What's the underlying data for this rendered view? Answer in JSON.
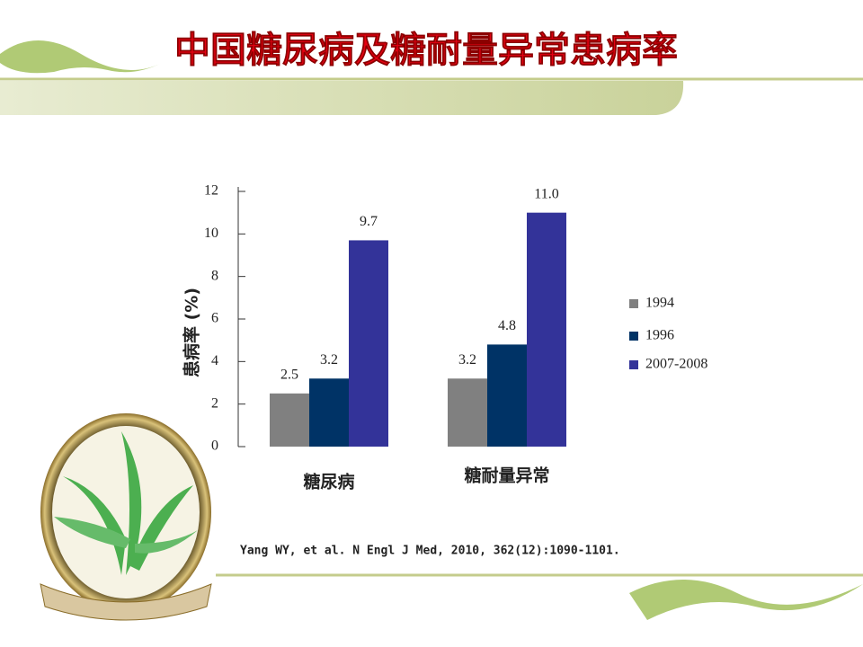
{
  "chart_data": {
    "type": "bar",
    "title": "中国糖尿病及糖耐量异常患病率",
    "y_label": "患病率 (%)",
    "categories": [
      "糖尿病",
      "糖耐量异常"
    ],
    "series": [
      {
        "name": "1994",
        "color": "#808080",
        "values": [
          2.5,
          3.2
        ]
      },
      {
        "name": "1996",
        "color": "#003366",
        "values": [
          3.2,
          4.8
        ]
      },
      {
        "name": "2007-2008",
        "color": "#333399",
        "values": [
          9.7,
          11.0
        ],
        "value_labels": [
          "9.7",
          "11.0"
        ]
      }
    ],
    "ylim": [
      0,
      12
    ],
    "yticks": [
      0,
      2,
      4,
      6,
      8,
      10,
      12
    ],
    "grid": false,
    "legend": "right",
    "source": "Yang WY, et al. N Engl J Med, 2010, 362(12):1090-1101."
  }
}
